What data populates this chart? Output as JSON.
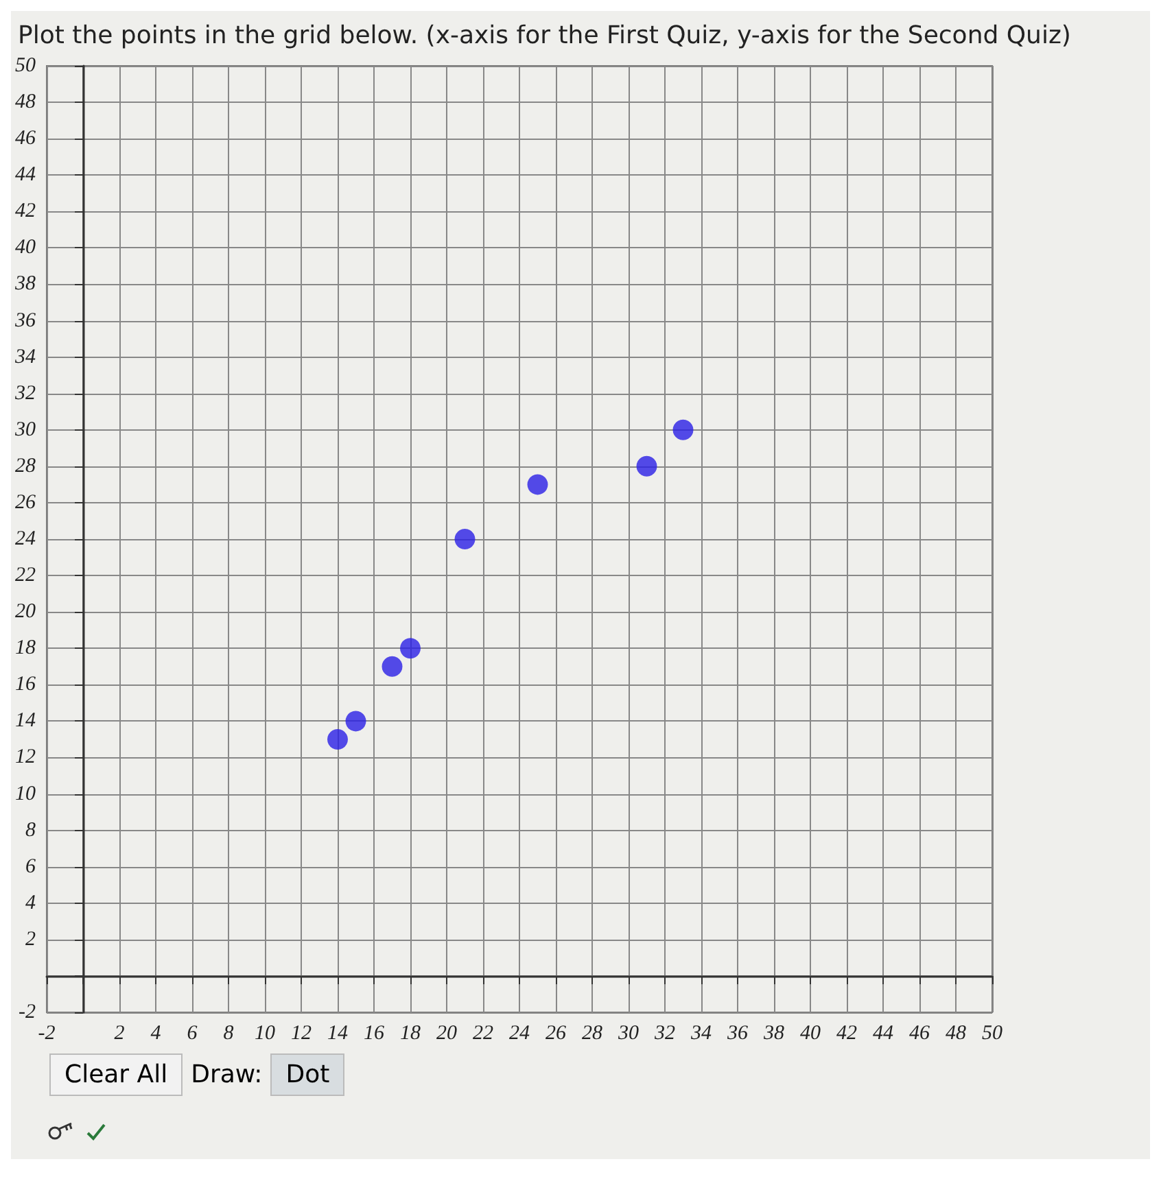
{
  "chart_data": {
    "type": "scatter",
    "title": "Plot the points in the grid below. (x-axis for the First Quiz, y-axis for the Second Quiz)",
    "x": [
      14,
      15,
      17,
      18,
      21,
      25,
      31,
      33
    ],
    "series": [
      {
        "color": "#2a1fe6",
        "values": [
          13,
          14,
          17,
          18,
          24,
          27,
          28,
          30
        ]
      }
    ],
    "xlim": [
      -2,
      50
    ],
    "ylim": [
      -2,
      50
    ],
    "xticks": [
      -2,
      {
        "value": 0,
        "label": null
      },
      2,
      4,
      6,
      8,
      10,
      12,
      14,
      16,
      18,
      20,
      22,
      24,
      26,
      28,
      30,
      32,
      34,
      36,
      38,
      40,
      42,
      44,
      46,
      48,
      50
    ],
    "yticks": [
      -2,
      {
        "value": 0,
        "label": null
      },
      2,
      4,
      6,
      8,
      10,
      12,
      14,
      16,
      18,
      20,
      22,
      24,
      26,
      28,
      30,
      32,
      34,
      36,
      38,
      40,
      42,
      44,
      46,
      48,
      50
    ],
    "grid": true,
    "marker": "circle",
    "annotations": [
      "Clear All",
      "Draw:",
      "Dot"
    ]
  }
}
